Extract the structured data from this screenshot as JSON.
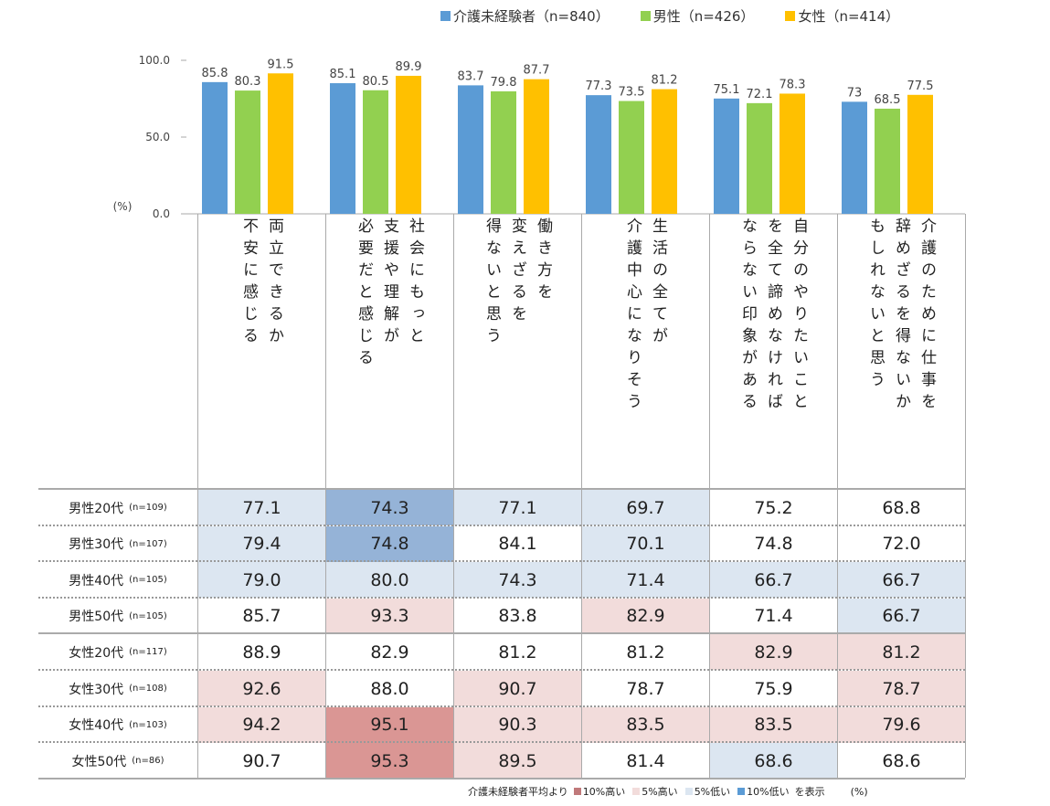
{
  "chart_data": {
    "type": "bar",
    "ylabel": "(%)",
    "ylim": [
      0,
      100
    ],
    "yticks": [
      "0.0",
      "50.0",
      "100.0"
    ],
    "grid": false,
    "legend_position": "top",
    "categories": [
      {
        "label": "両立できるか不安に感じる",
        "lines": [
          "両立できるか",
          "不安に感じる"
        ]
      },
      {
        "label": "社会にもっと支援や理解が必要だと感じる",
        "lines": [
          "社会にもっと",
          "支援や理解が",
          "必要だと感じる"
        ]
      },
      {
        "label": "働き方を変えざるを得ないと思う",
        "lines": [
          "働き方を",
          "変えざるを",
          "得ないと思う"
        ]
      },
      {
        "label": "生活の全てが介護中心になりそう",
        "lines": [
          "生活の全てが",
          "介護中心になりそう"
        ]
      },
      {
        "label": "自分のやりたいことを全て諦めなければならない印象がある",
        "lines": [
          "自分のやりたいこと",
          "を全て諦めなければ",
          "ならない印象がある"
        ]
      },
      {
        "label": "介護のために仕事を辞めざるを得ないかもしれないと思う",
        "lines": [
          "介護のために仕事を",
          "辞めざるを得ないか",
          "もしれないと思う"
        ]
      }
    ],
    "series": [
      {
        "name": "介護未経験者（n=840）",
        "color": "#5b9bd5",
        "values": [
          85.8,
          85.1,
          83.7,
          77.3,
          75.1,
          73.0
        ]
      },
      {
        "name": "男性（n=426）",
        "color": "#92d050",
        "values": [
          80.3,
          80.5,
          79.8,
          73.5,
          72.1,
          68.5
        ]
      },
      {
        "name": "女性（n=414）",
        "color": "#ffc000",
        "values": [
          91.5,
          89.9,
          87.7,
          81.2,
          78.3,
          77.5
        ]
      }
    ]
  },
  "table": {
    "highlight_colors": {
      "high10": "#da9694",
      "high5": "#f2dcdb",
      "low5": "#dce6f1",
      "low10": "#95b3d7",
      "none": "#ffffff"
    },
    "rows": [
      {
        "label": "男性20代",
        "n": "(n=109)",
        "values": [
          "77.1",
          "74.3",
          "77.1",
          "69.7",
          "75.2",
          "68.8"
        ],
        "marks": [
          "low5",
          "low10",
          "low5",
          "low5",
          "none",
          "none"
        ]
      },
      {
        "label": "男性30代",
        "n": "(n=107)",
        "values": [
          "79.4",
          "74.8",
          "84.1",
          "70.1",
          "74.8",
          "72.0"
        ],
        "marks": [
          "low5",
          "low10",
          "none",
          "low5",
          "none",
          "none"
        ]
      },
      {
        "label": "男性40代",
        "n": "(n=105)",
        "values": [
          "79.0",
          "80.0",
          "74.3",
          "71.4",
          "66.7",
          "66.7"
        ],
        "marks": [
          "low5",
          "low5",
          "low5",
          "low5",
          "low5",
          "low5"
        ]
      },
      {
        "label": "男性50代",
        "n": "(n=105)",
        "values": [
          "85.7",
          "93.3",
          "83.8",
          "82.9",
          "71.4",
          "66.7"
        ],
        "marks": [
          "none",
          "high5",
          "none",
          "high5",
          "none",
          "low5"
        ]
      },
      {
        "label": "女性20代",
        "n": "(n=117)",
        "values": [
          "88.9",
          "82.9",
          "81.2",
          "81.2",
          "82.9",
          "81.2"
        ],
        "marks": [
          "none",
          "none",
          "none",
          "none",
          "high5",
          "high5"
        ]
      },
      {
        "label": "女性30代",
        "n": "(n=108)",
        "values": [
          "92.6",
          "88.0",
          "90.7",
          "78.7",
          "75.9",
          "78.7"
        ],
        "marks": [
          "high5",
          "none",
          "high5",
          "none",
          "none",
          "high5"
        ]
      },
      {
        "label": "女性40代",
        "n": "(n=103)",
        "values": [
          "94.2",
          "95.1",
          "90.3",
          "83.5",
          "83.5",
          "79.6"
        ],
        "marks": [
          "high5",
          "high10",
          "high5",
          "high5",
          "high5",
          "high5"
        ]
      },
      {
        "label": "女性50代",
        "n": "(n=86)",
        "values": [
          "90.7",
          "95.3",
          "89.5",
          "81.4",
          "68.6",
          "68.6"
        ],
        "marks": [
          "none",
          "high10",
          "high5",
          "none",
          "low5",
          "none"
        ]
      }
    ]
  },
  "footnote": {
    "prefix": "介護未経験者平均より",
    "items": [
      {
        "key": "high10",
        "label": "10%高い"
      },
      {
        "key": "high5",
        "label": "5%高い"
      },
      {
        "key": "low5",
        "label": "5%低い"
      },
      {
        "key": "low10",
        "label": "10%低い"
      }
    ],
    "suffix": "を表示",
    "unit": "(%)"
  }
}
